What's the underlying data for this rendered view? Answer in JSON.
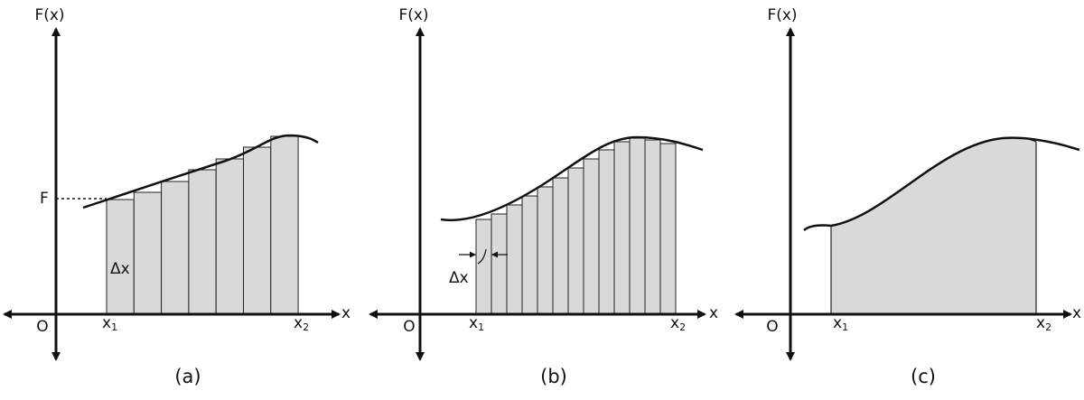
{
  "panels": [
    {
      "caption": "(a)",
      "y_axis_label": "F(x)",
      "x_axis_label": "x",
      "origin_label": "O",
      "x1_label": {
        "base": "x",
        "sub": "1"
      },
      "x2_label": {
        "base": "x",
        "sub": "2"
      },
      "level_label": "F",
      "width_label": "Δx"
    },
    {
      "caption": "(b)",
      "y_axis_label": "F(x)",
      "x_axis_label": "x",
      "origin_label": "O",
      "x1_label": {
        "base": "x",
        "sub": "1"
      },
      "x2_label": {
        "base": "x",
        "sub": "2"
      },
      "width_label": "Δx"
    },
    {
      "caption": "(c)",
      "y_axis_label": "F(x)",
      "x_axis_label": "x",
      "origin_label": "O",
      "x1_label": {
        "base": "x",
        "sub": "1"
      },
      "x2_label": {
        "base": "x",
        "sub": "2"
      }
    }
  ]
}
